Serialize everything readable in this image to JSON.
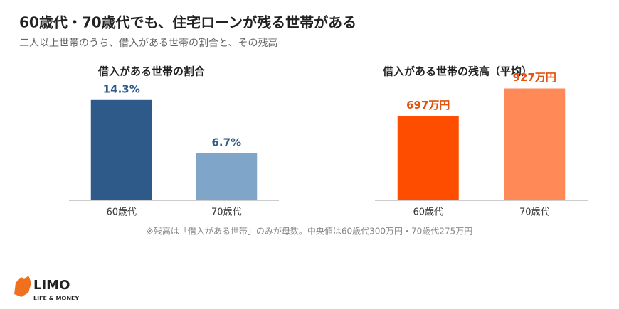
{
  "title": "60歳代・70歳代でも、住宅ローンが残る世帯がある",
  "subtitle": "二人以上世帯のうち、借入がある世帯の割合と、その残高",
  "chart_data": [
    {
      "type": "bar",
      "title": "借入がある世帯の割合",
      "categories": [
        "60歳代",
        "70歳代"
      ],
      "values": [
        14.3,
        6.7
      ],
      "value_labels": [
        "14.3%",
        "6.7%"
      ],
      "colors": [
        "#2d5a88",
        "#7fa6c8"
      ],
      "label_color": "#2d5a88",
      "ylim": [
        0,
        16
      ]
    },
    {
      "type": "bar",
      "title": "借入がある世帯の残高（平均）",
      "categories": [
        "60歳代",
        "70歳代"
      ],
      "values": [
        697,
        927
      ],
      "value_labels": [
        "697万円",
        "927万円"
      ],
      "colors": [
        "#ff4d00",
        "#ff8a58"
      ],
      "label_color": "#e25410",
      "ylim": [
        0,
        930
      ]
    }
  ],
  "footnote": "※残高は「借入がある世帯」のみが母数。中央値は60歳代300万円・70歳代275万円",
  "logo": {
    "name": "LIMO",
    "tagline": "LIFE & MONEY"
  }
}
